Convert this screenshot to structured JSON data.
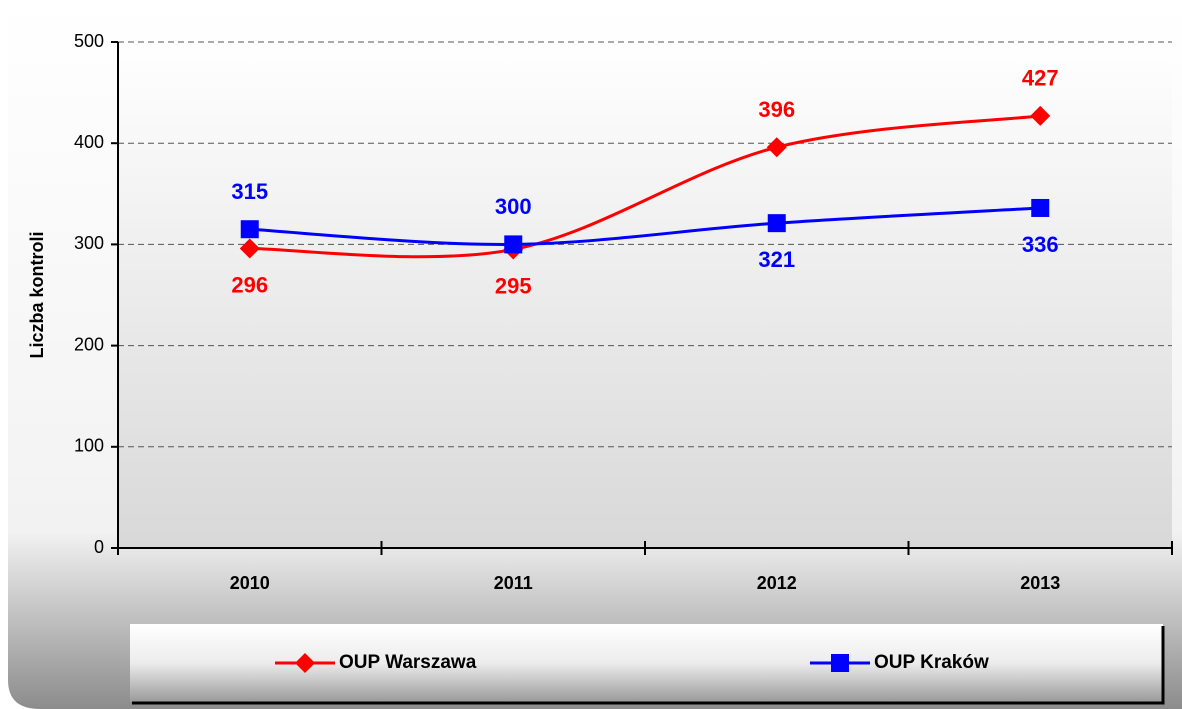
{
  "chart_data": {
    "type": "line",
    "y_label": "Liczba kontroli",
    "categories": [
      "2010",
      "2011",
      "2012",
      "2013"
    ],
    "series": [
      {
        "name": "OUP Warszawa",
        "color": "#ff0000",
        "marker": "diamond",
        "values": [
          296,
          295,
          396,
          427
        ]
      },
      {
        "name": "OUP Kraków",
        "color": "#0000ff",
        "marker": "square",
        "values": [
          315,
          300,
          321,
          336
        ]
      }
    ],
    "ylim": [
      0,
      500
    ],
    "yticks": [
      0,
      100,
      200,
      300,
      400,
      500
    ],
    "grid": true,
    "smooth": true,
    "legend": "bottom"
  }
}
